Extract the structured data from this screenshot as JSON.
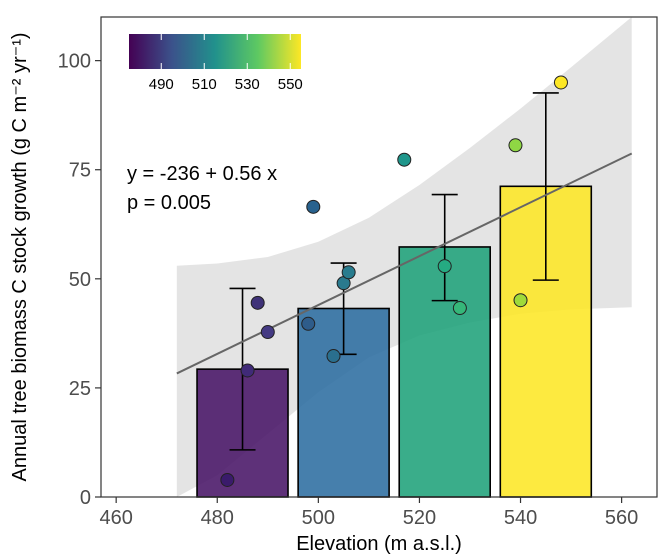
{
  "chart_data": {
    "type": "bar",
    "title": "",
    "xlabel": "Elevation (m a.s.l.)",
    "ylabel": "Annual tree biomass C stock growth (g C m⁻² yr⁻¹)",
    "xlim": [
      457,
      567
    ],
    "ylim": [
      0,
      110
    ],
    "x_ticks": [
      460,
      480,
      500,
      520,
      540,
      560
    ],
    "y_ticks": [
      0,
      25,
      50,
      75,
      100
    ],
    "grid": false,
    "bars": [
      {
        "x": 476,
        "width": 18,
        "value": 29.3,
        "err_low": 10.8,
        "err_high": 47.8,
        "color": "#481567"
      },
      {
        "x": 496,
        "width": 18,
        "value": 43.2,
        "err_low": 32.7,
        "err_high": 53.6,
        "color": "#2c6da0"
      },
      {
        "x": 516,
        "width": 18,
        "value": 57.3,
        "err_low": 45.0,
        "err_high": 69.3,
        "color": "#1fa27a"
      },
      {
        "x": 536,
        "width": 18,
        "value": 71.2,
        "err_low": 49.7,
        "err_high": 92.6,
        "color": "#fde725"
      }
    ],
    "points": [
      {
        "x": 482,
        "y": 3.9,
        "color": "#3a1b6b"
      },
      {
        "x": 486,
        "y": 29.0,
        "color": "#402a78"
      },
      {
        "x": 488,
        "y": 44.5,
        "color": "#3f3278"
      },
      {
        "x": 490,
        "y": 37.8,
        "color": "#443a83"
      },
      {
        "x": 498,
        "y": 39.7,
        "color": "#2e5c8a"
      },
      {
        "x": 499,
        "y": 66.5,
        "color": "#29628e"
      },
      {
        "x": 503,
        "y": 32.3,
        "color": "#2a6f8e"
      },
      {
        "x": 505,
        "y": 49.0,
        "color": "#2a7a8e"
      },
      {
        "x": 506,
        "y": 51.5,
        "color": "#287c8e"
      },
      {
        "x": 517,
        "y": 77.3,
        "color": "#1f968b"
      },
      {
        "x": 525,
        "y": 52.9,
        "color": "#25ab82"
      },
      {
        "x": 528,
        "y": 43.3,
        "color": "#35b779"
      },
      {
        "x": 539,
        "y": 80.6,
        "color": "#8fd744"
      },
      {
        "x": 540,
        "y": 45.1,
        "color": "#9fda3a"
      },
      {
        "x": 548,
        "y": 95.0,
        "color": "#fde725"
      }
    ],
    "regression": {
      "intercept": -236,
      "slope": 0.56,
      "x_range": [
        472,
        562
      ],
      "ci_upper": [
        [
          472,
          53.0
        ],
        [
          480,
          53.5
        ],
        [
          490,
          55.0
        ],
        [
          500,
          58.5
        ],
        [
          510,
          64.0
        ],
        [
          520,
          71.5
        ],
        [
          530,
          80.0
        ],
        [
          540,
          89.0
        ],
        [
          550,
          98.5
        ],
        [
          562,
          110.0
        ]
      ],
      "ci_lower": [
        [
          472,
          0
        ],
        [
          480,
          5.0
        ],
        [
          490,
          14.5
        ],
        [
          500,
          24.0
        ],
        [
          510,
          32.0
        ],
        [
          520,
          37.0
        ],
        [
          530,
          40.0
        ],
        [
          540,
          42.0
        ],
        [
          550,
          43.0
        ],
        [
          562,
          43.5
        ]
      ]
    },
    "annotations": [
      "y = -236 + 0.56 x",
      "p = 0.005"
    ],
    "colorbar": {
      "ticks": [
        "490",
        "510",
        "530",
        "550"
      ],
      "min": 475,
      "max": 555,
      "placement": "top-left",
      "colors": [
        "#440154",
        "#3b528b",
        "#21918c",
        "#5ec962",
        "#fde725"
      ]
    },
    "regression_line_color": "#666666",
    "ci_fill_color": "#d9d9d9"
  }
}
